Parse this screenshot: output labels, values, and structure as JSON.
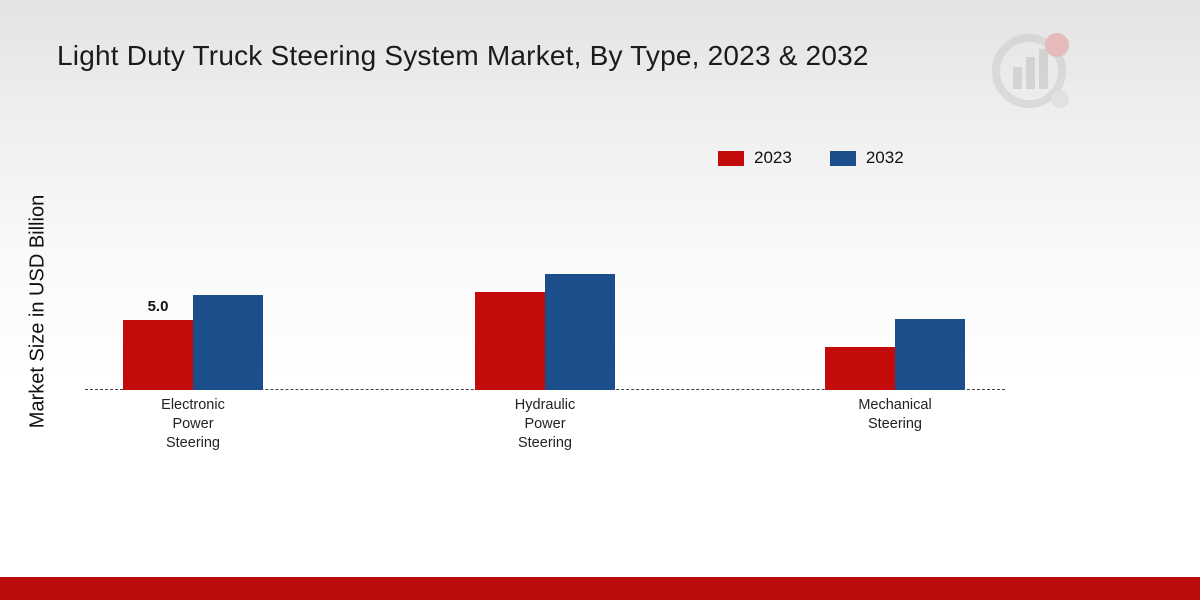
{
  "title": "Light Duty Truck Steering System Market, By Type, 2023 & 2032",
  "ylabel": "Market Size in USD Billion",
  "legend": [
    {
      "label": "2023",
      "color": "#c40b0b"
    },
    {
      "label": "2032",
      "color": "#1b4e8a"
    }
  ],
  "footer_color": "#bb0c0c",
  "watermark_icon": "bar-chart-logo",
  "chart_data": {
    "type": "bar",
    "categories": [
      "Electronic\nPower\nSteering",
      "Hydraulic\nPower\nSteering",
      "Mechanical\nSteering"
    ],
    "series": [
      {
        "name": "2023",
        "color": "#c40b0b",
        "values": [
          5.0,
          7.0,
          3.1
        ]
      },
      {
        "name": "2032",
        "color": "#1b4e8a",
        "values": [
          6.8,
          8.3,
          5.1
        ]
      }
    ],
    "annotations": [
      {
        "series": "2023",
        "category": "Electronic Power Steering",
        "text": "5.0"
      }
    ],
    "ylabel": "Market Size in USD Billion",
    "ylim": [
      0,
      10
    ],
    "baseline_style": "dashed",
    "grid": false,
    "legend_position": "top-right"
  }
}
